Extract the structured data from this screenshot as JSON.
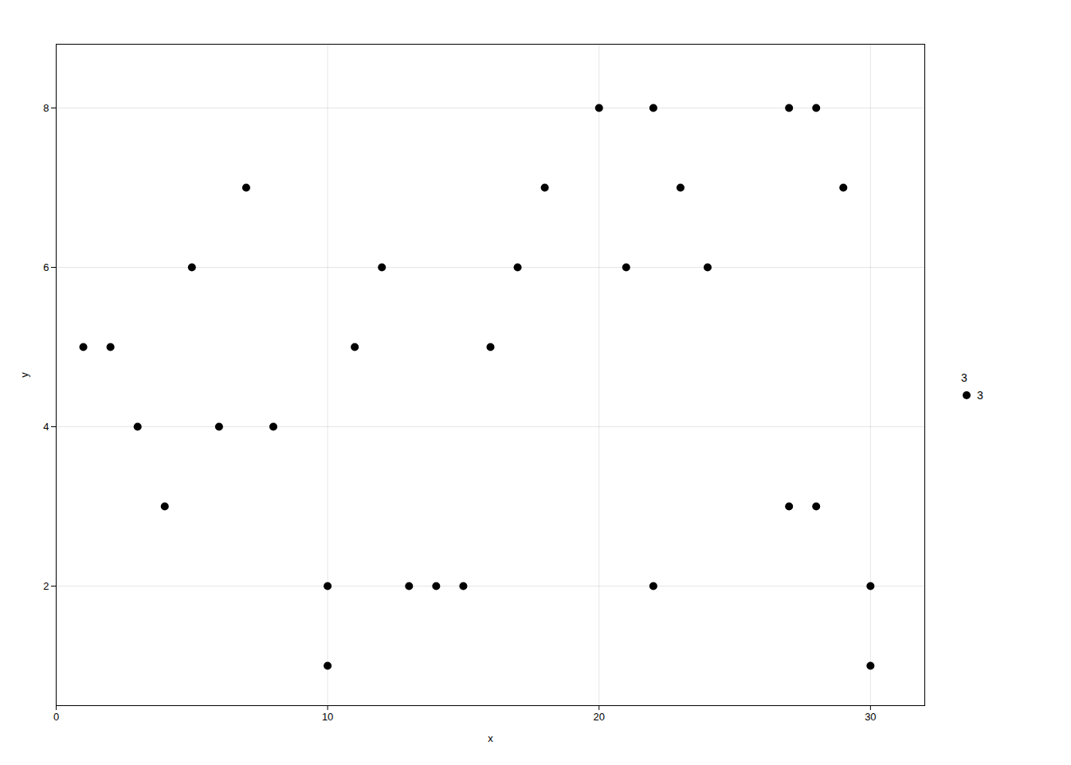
{
  "chart_data": {
    "type": "scatter",
    "xlabel": "x",
    "ylabel": "y",
    "legend_title": "3",
    "series": [
      {
        "name": "3",
        "color": "#000000",
        "marker": "circle",
        "x": [
          1,
          2,
          3,
          4,
          5,
          6,
          7,
          8,
          10,
          10,
          11,
          12,
          13,
          14,
          15,
          16,
          17,
          18,
          20,
          21,
          22,
          23,
          22,
          24,
          27,
          28,
          27,
          28,
          29,
          30,
          30
        ],
        "values": [
          5,
          5,
          4,
          3,
          6,
          4,
          7,
          4,
          2,
          1,
          5,
          6,
          2,
          2,
          2,
          5,
          6,
          7,
          8,
          6,
          8,
          7,
          2,
          6,
          3,
          3,
          8,
          8,
          7,
          2,
          1
        ]
      }
    ],
    "xlim": [
      0,
      32
    ],
    "ylim": [
      0.5,
      8.8
    ],
    "xticks": [
      0,
      10,
      20,
      30
    ],
    "yticks": [
      2,
      4,
      6,
      8
    ],
    "grid": true,
    "legend": "right"
  }
}
